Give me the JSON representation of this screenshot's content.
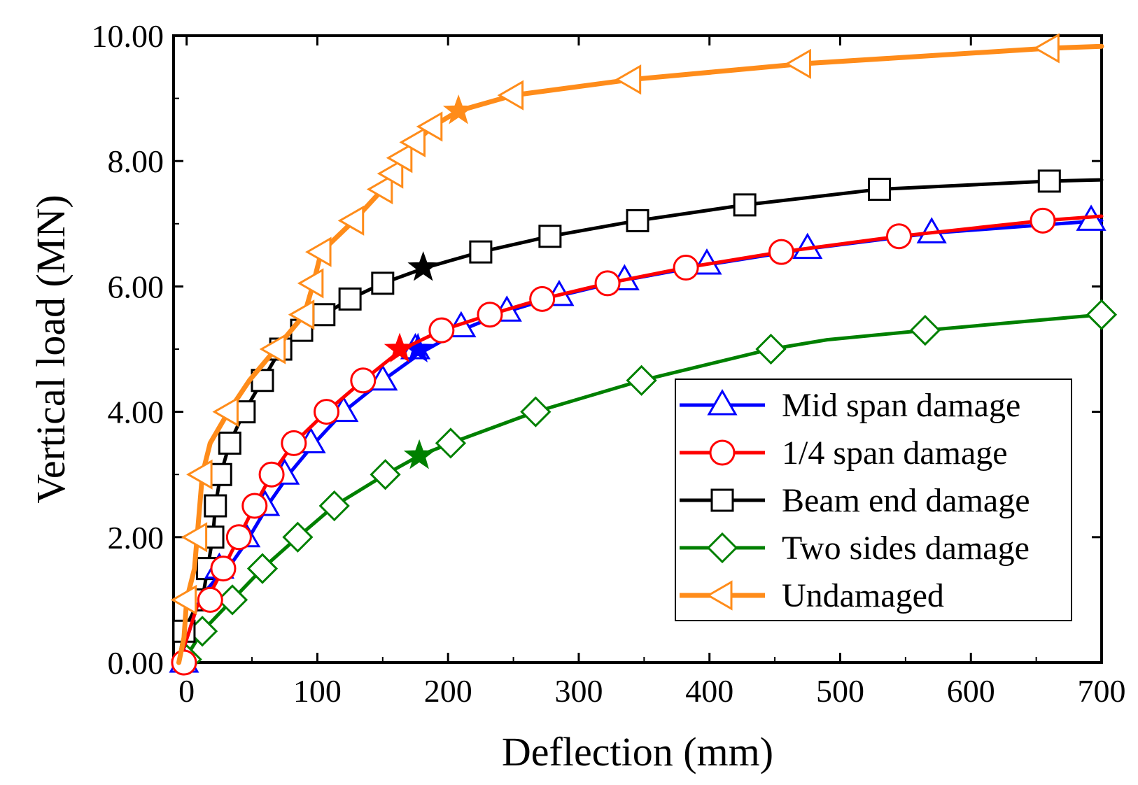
{
  "chart_data": {
    "type": "line",
    "xlabel": "Deflection  (mm)",
    "ylabel": "Vertical load (MN)",
    "xlim": [
      -10,
      700
    ],
    "ylim": [
      0,
      10
    ],
    "xticks": [
      0,
      100,
      200,
      300,
      400,
      500,
      600,
      700
    ],
    "yticks": [
      0,
      2,
      4,
      6,
      8,
      10
    ],
    "xtick_labels": [
      "0",
      "100",
      "200",
      "300",
      "400",
      "500",
      "600",
      "700"
    ],
    "ytick_labels": [
      "0.00",
      "2.00",
      "4.00",
      "6.00",
      "8.00",
      "10.00"
    ],
    "legend_position": "lower-right",
    "series": [
      {
        "name": "Mid span damage",
        "color": "#0000ff",
        "marker": "triangle-up",
        "line": [
          [
            -6,
            0
          ],
          [
            2,
            0.5
          ],
          [
            8,
            0.9
          ],
          [
            15,
            1.15
          ],
          [
            25,
            1.4
          ],
          [
            35,
            1.6
          ],
          [
            45,
            1.9
          ],
          [
            55,
            2.25
          ],
          [
            65,
            2.6
          ],
          [
            80,
            3.05
          ],
          [
            100,
            3.55
          ],
          [
            120,
            4.0
          ],
          [
            150,
            4.5
          ],
          [
            180,
            4.95
          ],
          [
            210,
            5.3
          ],
          [
            245,
            5.6
          ],
          [
            285,
            5.85
          ],
          [
            335,
            6.1
          ],
          [
            400,
            6.35
          ],
          [
            475,
            6.6
          ],
          [
            570,
            6.85
          ],
          [
            700,
            7.05
          ]
        ],
        "markers": [
          [
            -2,
            0
          ],
          [
            25,
            1.5
          ],
          [
            45,
            2.0
          ],
          [
            60,
            2.5
          ],
          [
            75,
            3.0
          ],
          [
            95,
            3.5
          ],
          [
            120,
            4.0
          ],
          [
            150,
            4.5
          ],
          [
            175,
            5.0
          ],
          [
            210,
            5.35
          ],
          [
            245,
            5.6
          ],
          [
            285,
            5.85
          ],
          [
            335,
            6.1
          ],
          [
            398,
            6.35
          ],
          [
            475,
            6.6
          ],
          [
            570,
            6.85
          ],
          [
            692,
            7.05
          ]
        ],
        "star": [
          177,
          5.0
        ]
      },
      {
        "name": "1/4 span damage",
        "color": "#ff0000",
        "marker": "circle",
        "line": [
          [
            -6,
            0
          ],
          [
            2,
            0.5
          ],
          [
            8,
            0.9
          ],
          [
            18,
            1.1
          ],
          [
            28,
            1.5
          ],
          [
            40,
            2.0
          ],
          [
            52,
            2.5
          ],
          [
            65,
            3.0
          ],
          [
            82,
            3.5
          ],
          [
            107,
            4.0
          ],
          [
            135,
            4.5
          ],
          [
            165,
            5.0
          ],
          [
            195,
            5.3
          ],
          [
            232,
            5.55
          ],
          [
            272,
            5.8
          ],
          [
            322,
            6.05
          ],
          [
            382,
            6.3
          ],
          [
            455,
            6.55
          ],
          [
            545,
            6.8
          ],
          [
            655,
            7.05
          ],
          [
            700,
            7.12
          ]
        ],
        "markers": [
          [
            -2,
            0
          ],
          [
            18,
            1.0
          ],
          [
            28,
            1.5
          ],
          [
            40,
            2.0
          ],
          [
            52,
            2.5
          ],
          [
            65,
            3.0
          ],
          [
            82,
            3.5
          ],
          [
            107,
            4.0
          ],
          [
            135,
            4.5
          ],
          [
            195,
            5.3
          ],
          [
            232,
            5.55
          ],
          [
            272,
            5.8
          ],
          [
            322,
            6.05
          ],
          [
            382,
            6.3
          ],
          [
            455,
            6.55
          ],
          [
            545,
            6.8
          ],
          [
            655,
            7.05
          ]
        ],
        "star": [
          163,
          5.0
        ]
      },
      {
        "name": "Beam end damage",
        "color": "#000000",
        "marker": "square",
        "line": [
          [
            -6,
            0
          ],
          [
            -2,
            0.5
          ],
          [
            5,
            0.8
          ],
          [
            12,
            1.0
          ],
          [
            16,
            1.5
          ],
          [
            20,
            2.0
          ],
          [
            22,
            2.5
          ],
          [
            26,
            3.0
          ],
          [
            33,
            3.5
          ],
          [
            44,
            4.0
          ],
          [
            58,
            4.5
          ],
          [
            72,
            5.0
          ],
          [
            88,
            5.3
          ],
          [
            105,
            5.55
          ],
          [
            125,
            5.8
          ],
          [
            150,
            6.05
          ],
          [
            183,
            6.3
          ],
          [
            225,
            6.55
          ],
          [
            278,
            6.8
          ],
          [
            345,
            7.05
          ],
          [
            427,
            7.3
          ],
          [
            530,
            7.55
          ],
          [
            660,
            7.68
          ],
          [
            700,
            7.7
          ]
        ],
        "markers": [
          [
            -2,
            0.5
          ],
          [
            12,
            1.0
          ],
          [
            16,
            1.5
          ],
          [
            20,
            2.0
          ],
          [
            22,
            2.5
          ],
          [
            26,
            3.0
          ],
          [
            33,
            3.5
          ],
          [
            44,
            4.0
          ],
          [
            58,
            4.5
          ],
          [
            72,
            5.0
          ],
          [
            88,
            5.3
          ],
          [
            105,
            5.55
          ],
          [
            125,
            5.8
          ],
          [
            150,
            6.05
          ],
          [
            225,
            6.55
          ],
          [
            278,
            6.8
          ],
          [
            345,
            7.05
          ],
          [
            427,
            7.3
          ],
          [
            530,
            7.55
          ],
          [
            660,
            7.68
          ]
        ],
        "star": [
          181,
          6.3
        ]
      },
      {
        "name": "Two sides damage",
        "color": "#008000",
        "marker": "diamond",
        "line": [
          [
            -6,
            0
          ],
          [
            0,
            0.1
          ],
          [
            12,
            0.5
          ],
          [
            35,
            1.0
          ],
          [
            58,
            1.5
          ],
          [
            85,
            2.0
          ],
          [
            113,
            2.5
          ],
          [
            152,
            3.0
          ],
          [
            178,
            3.3
          ],
          [
            202,
            3.5
          ],
          [
            267,
            4.0
          ],
          [
            348,
            4.5
          ],
          [
            447,
            5.0
          ],
          [
            490,
            5.15
          ],
          [
            565,
            5.3
          ],
          [
            700,
            5.55
          ]
        ],
        "markers": [
          [
            0,
            0.05
          ],
          [
            12,
            0.5
          ],
          [
            35,
            1.0
          ],
          [
            58,
            1.5
          ],
          [
            85,
            2.0
          ],
          [
            113,
            2.5
          ],
          [
            152,
            3.0
          ],
          [
            202,
            3.5
          ],
          [
            267,
            4.0
          ],
          [
            348,
            4.5
          ],
          [
            447,
            5.0
          ],
          [
            565,
            5.3
          ],
          [
            700,
            5.55
          ]
        ],
        "star": [
          178,
          3.3
        ]
      },
      {
        "name": "Undamaged",
        "color": "#ff8c1a",
        "marker": "triangle-left",
        "line": [
          [
            -6,
            0
          ],
          [
            -2,
            0.4
          ],
          [
            0,
            1.0
          ],
          [
            6,
            1.5
          ],
          [
            8,
            2.0
          ],
          [
            10,
            2.5
          ],
          [
            12,
            3.0
          ],
          [
            18,
            3.5
          ],
          [
            32,
            4.0
          ],
          [
            48,
            4.5
          ],
          [
            68,
            5.0
          ],
          [
            90,
            5.55
          ],
          [
            97,
            6.05
          ],
          [
            103,
            6.55
          ],
          [
            128,
            7.05
          ],
          [
            150,
            7.55
          ],
          [
            158,
            7.8
          ],
          [
            165,
            8.05
          ],
          [
            175,
            8.3
          ],
          [
            188,
            8.55
          ],
          [
            208,
            8.8
          ],
          [
            250,
            9.05
          ],
          [
            340,
            9.3
          ],
          [
            470,
            9.55
          ],
          [
            660,
            9.8
          ],
          [
            700,
            9.83
          ]
        ],
        "markers": [
          [
            0,
            1.0
          ],
          [
            8,
            2.0
          ],
          [
            12,
            3.0
          ],
          [
            32,
            4.0
          ],
          [
            68,
            5.0
          ],
          [
            90,
            5.55
          ],
          [
            97,
            6.05
          ],
          [
            103,
            6.55
          ],
          [
            128,
            7.05
          ],
          [
            150,
            7.55
          ],
          [
            158,
            7.8
          ],
          [
            165,
            8.05
          ],
          [
            175,
            8.3
          ],
          [
            188,
            8.55
          ],
          [
            250,
            9.05
          ],
          [
            340,
            9.3
          ],
          [
            470,
            9.55
          ],
          [
            660,
            9.8
          ]
        ],
        "star": [
          208,
          8.8
        ]
      }
    ]
  }
}
